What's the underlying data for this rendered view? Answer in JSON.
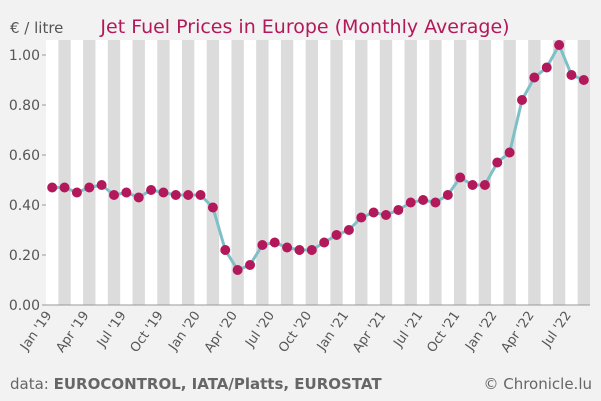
{
  "chart_data": {
    "type": "line",
    "title": "Jet Fuel Prices in Europe (Monthly Average)",
    "y_label": "€ / litre",
    "source_label": "data:",
    "source": "EUROCONTROL, IATA/Platts, EUROSTAT",
    "credit": "© Chronicle.lu",
    "categories": [
      "Jan '19",
      null,
      null,
      "Apr '19",
      null,
      null,
      "Jul '19",
      null,
      null,
      "Oct '19",
      null,
      null,
      "Jan '20",
      null,
      null,
      "Apr '20",
      null,
      null,
      "Jul '20",
      null,
      null,
      "Oct '20",
      null,
      null,
      "Jan '21",
      null,
      null,
      "Apr '21",
      null,
      null,
      "Jul '21",
      null,
      null,
      "Oct '21",
      null,
      null,
      "Jan '22",
      null,
      null,
      "Apr '22",
      null,
      null,
      "Jul '22",
      null
    ],
    "series": [
      {
        "name": "Jet fuel price",
        "color": "#7fc0c8",
        "marker_color": "#b3195a",
        "values": [
          0.47,
          0.47,
          0.45,
          0.47,
          0.48,
          0.44,
          0.45,
          0.43,
          0.46,
          0.45,
          0.44,
          0.44,
          0.44,
          0.39,
          0.22,
          0.14,
          0.16,
          0.24,
          0.25,
          0.23,
          0.22,
          0.22,
          0.25,
          0.28,
          0.3,
          0.35,
          0.37,
          0.36,
          0.38,
          0.41,
          0.42,
          0.41,
          0.44,
          0.51,
          0.48,
          0.48,
          0.57,
          0.61,
          0.82,
          0.91,
          0.95,
          1.04,
          0.92,
          0.9
        ]
      }
    ],
    "ylim": [
      0,
      1.06
    ],
    "yticks": [
      {
        "value": 0,
        "label": "0.00"
      },
      {
        "value": 0.2,
        "label": "0.20"
      },
      {
        "value": 0.4,
        "label": "0.40"
      },
      {
        "value": 0.6,
        "label": "0.60"
      },
      {
        "value": 0.8,
        "label": "0.80"
      },
      {
        "value": 1.0,
        "label": "1.00"
      }
    ]
  }
}
